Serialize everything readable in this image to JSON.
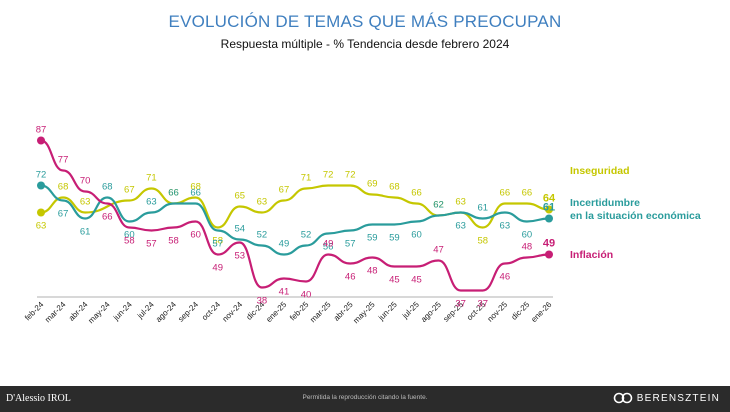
{
  "title": "EVOLUCIÓN DE TEMAS QUE MÁS PREOCUPAN",
  "subtitle": "Respuesta múltiple - % Tendencia desde febrero 2024",
  "footer": {
    "left_brand": "D'Alessio IROL",
    "note": "Permitida la reproducción citando la fuente.",
    "right_brand": "BERENSZTEIN"
  },
  "colors": {
    "inseguridad": "#c5c700",
    "incertidumbre": "#2a9c9c",
    "inflacion": "#c71e75"
  },
  "chart_data": {
    "type": "line",
    "categories": [
      "feb-24",
      "mar-24",
      "abr-24",
      "may-24",
      "jun-24",
      "jul-24",
      "ago-24",
      "sep-24",
      "oct-24",
      "nov-24",
      "dic-24",
      "ene-25",
      "feb-25",
      "mar-25",
      "abr-25",
      "may-25",
      "jun-25",
      "jul-25",
      "ago-25",
      "sep-25",
      "oct-25",
      "nov-25",
      "dic-25",
      "ene-26"
    ],
    "series": [
      {
        "name": "Inseguridad",
        "color": "#c5c700",
        "values": [
          63,
          68,
          63,
          null,
          67,
          71,
          66,
          68,
          58,
          65,
          63,
          67,
          71,
          72,
          72,
          69,
          68,
          66,
          62,
          63,
          58,
          66,
          66,
          64
        ]
      },
      {
        "name": "Incertidumbre en la situación económica",
        "color": "#2a9c9c",
        "values": [
          72,
          67,
          61,
          68,
          60,
          63,
          66,
          66,
          57,
          54,
          52,
          49,
          52,
          56,
          57,
          59,
          59,
          60,
          62,
          63,
          61,
          63,
          60,
          61
        ]
      },
      {
        "name": "Inflación",
        "color": "#c71e75",
        "values": [
          87,
          77,
          70,
          66,
          58,
          57,
          58,
          60,
          49,
          53,
          38,
          41,
          40,
          49,
          46,
          48,
          45,
          45,
          47,
          37,
          37,
          46,
          48,
          49
        ]
      }
    ],
    "legend_labels": [
      "Inseguridad",
      "Incertidumbre",
      "en la situación económica",
      "Inflación"
    ],
    "legend_placement": "right",
    "grid": false
  }
}
